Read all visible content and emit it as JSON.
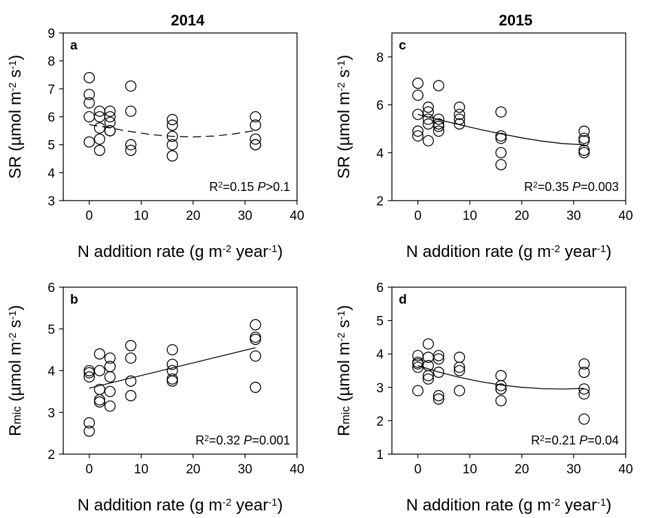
{
  "years": [
    "2014",
    "2015"
  ],
  "chart_data": [
    {
      "type": "scatter",
      "panel": "a",
      "xlabel": "N addition rate (g m-2 year-1)",
      "ylabel": "SR (µmol m-2 s-1)",
      "xlim": [
        -5,
        40
      ],
      "xticks": [
        0,
        10,
        20,
        30,
        40
      ],
      "ylim": [
        3,
        9
      ],
      "yticks": [
        3,
        4,
        5,
        6,
        7,
        8,
        9
      ],
      "x": [
        0,
        0,
        0,
        0,
        0,
        2,
        2,
        2,
        2,
        2,
        4,
        4,
        4,
        4,
        4,
        8,
        8,
        8,
        8,
        16,
        16,
        16,
        16,
        16,
        32,
        32,
        32,
        32,
        32
      ],
      "y": [
        7.4,
        6.8,
        6.5,
        6.0,
        5.1,
        6.2,
        6.0,
        5.6,
        5.2,
        4.8,
        6.2,
        6.0,
        5.8,
        5.5,
        5.5,
        7.1,
        6.2,
        5.0,
        4.8,
        5.9,
        5.7,
        5.3,
        5.0,
        4.6,
        6.0,
        5.7,
        5.2,
        5.0,
        5.0
      ],
      "fit": {
        "style": "dashed",
        "x": [
          0,
          4,
          8,
          12,
          16,
          20,
          24,
          28,
          32
        ],
        "y": [
          5.72,
          5.6,
          5.47,
          5.36,
          5.3,
          5.28,
          5.31,
          5.39,
          5.51
        ]
      },
      "annotation": {
        "r2": "R2=0.15",
        "p": "P>0.1"
      }
    },
    {
      "type": "scatter",
      "panel": "b",
      "xlabel": "N addition rate (g m-2 year-1)",
      "ylabel": "Rmic (µmol m-2 s-1)",
      "xlim": [
        -5,
        40
      ],
      "xticks": [
        0,
        10,
        20,
        30,
        40
      ],
      "ylim": [
        2,
        6
      ],
      "yticks": [
        2,
        3,
        4,
        5,
        6
      ],
      "x": [
        0,
        0,
        0,
        0,
        0,
        2,
        2,
        2,
        2,
        2,
        4,
        4,
        4,
        4,
        4,
        8,
        8,
        8,
        8,
        16,
        16,
        16,
        16,
        16,
        32,
        32,
        32,
        32,
        32
      ],
      "y": [
        4.0,
        3.95,
        3.85,
        2.75,
        2.55,
        4.4,
        4.0,
        3.55,
        3.3,
        3.25,
        4.3,
        4.1,
        3.85,
        3.5,
        3.15,
        4.6,
        4.3,
        3.75,
        3.4,
        4.5,
        4.15,
        4.0,
        3.8,
        3.75,
        5.1,
        4.8,
        4.75,
        4.35,
        3.6
      ],
      "fit": {
        "style": "solid",
        "x": [
          0,
          32
        ],
        "y": [
          3.58,
          4.55
        ]
      },
      "annotation": {
        "r2": "R2=0.32",
        "p": "P=0.001"
      }
    },
    {
      "type": "scatter",
      "panel": "c",
      "xlabel": "N addition rate (g m-2 year-1)",
      "ylabel": "SR (µmol m-2 s-1)",
      "xlim": [
        -5,
        40
      ],
      "xticks": [
        0,
        10,
        20,
        30,
        40
      ],
      "ylim": [
        2,
        9
      ],
      "yticks": [
        2,
        4,
        6,
        8
      ],
      "x": [
        0,
        0,
        0,
        0,
        0,
        2,
        2,
        2,
        2,
        2,
        4,
        4,
        4,
        4,
        4,
        8,
        8,
        8,
        8,
        16,
        16,
        16,
        16,
        16,
        32,
        32,
        32,
        32,
        32
      ],
      "y": [
        6.9,
        6.4,
        5.6,
        4.9,
        4.7,
        5.9,
        5.7,
        5.4,
        5.2,
        4.5,
        6.8,
        5.4,
        5.2,
        5.1,
        4.9,
        5.9,
        5.6,
        5.4,
        5.2,
        5.7,
        4.7,
        4.6,
        4.0,
        3.5,
        4.9,
        4.6,
        4.5,
        4.1,
        4.0
      ],
      "fit": {
        "style": "solid",
        "x": [
          0,
          4,
          8,
          12,
          16,
          20,
          24,
          28,
          32
        ],
        "y": [
          5.6,
          5.38,
          5.17,
          4.97,
          4.79,
          4.62,
          4.48,
          4.38,
          4.33
        ]
      },
      "annotation": {
        "r2": "R2=0.35",
        "p": "P=0.003"
      }
    },
    {
      "type": "scatter",
      "panel": "d",
      "xlabel": "N addition rate (g m-2 year-1)",
      "ylabel": "Rmic (µmol m-2 s-1)",
      "xlim": [
        -5,
        40
      ],
      "xticks": [
        0,
        10,
        20,
        30,
        40
      ],
      "ylim": [
        1,
        6
      ],
      "yticks": [
        1,
        2,
        3,
        4,
        5,
        6
      ],
      "x": [
        0,
        0,
        0,
        0,
        0,
        2,
        2,
        2,
        2,
        2,
        4,
        4,
        4,
        4,
        4,
        8,
        8,
        8,
        8,
        16,
        16,
        16,
        16,
        16,
        32,
        32,
        32,
        32,
        32
      ],
      "y": [
        3.95,
        3.75,
        3.7,
        3.6,
        2.9,
        4.3,
        3.9,
        3.65,
        3.35,
        3.25,
        3.95,
        3.85,
        3.45,
        2.75,
        2.65,
        3.9,
        3.6,
        3.5,
        2.9,
        3.35,
        3.05,
        2.95,
        2.95,
        2.6,
        3.7,
        3.45,
        2.95,
        2.8,
        2.05
      ],
      "fit": {
        "style": "solid",
        "x": [
          0,
          4,
          8,
          12,
          16,
          20,
          24,
          28,
          32
        ],
        "y": [
          3.65,
          3.46,
          3.3,
          3.17,
          3.07,
          3.0,
          2.96,
          2.95,
          2.97
        ]
      },
      "annotation": {
        "r2": "R2=0.21",
        "p": "P=0.04"
      }
    }
  ]
}
